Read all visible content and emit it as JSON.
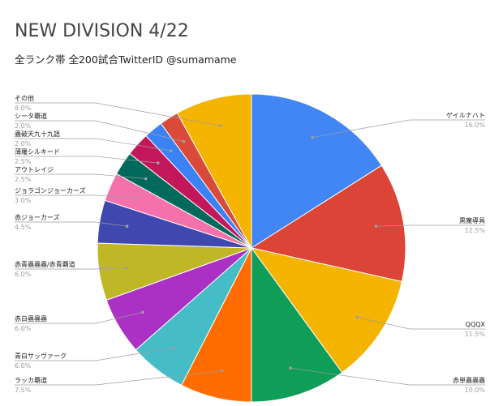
{
  "header": {
    "title": "NEW DIVISION 4/22",
    "subtitle": "全ランク帯 全200試合TwitterID @sumamame"
  },
  "chart_data": {
    "type": "pie",
    "title": "NEW DIVISION 4/22",
    "subtitle": "全ランク帯 全200試合TwitterID @sumamame",
    "slices": [
      {
        "label": "ゲイルナハト",
        "pct_label": "16.0%",
        "value": 16.0,
        "color": "#4285f4"
      },
      {
        "label": "黒魔導具",
        "pct_label": "12.5%",
        "value": 12.5,
        "color": "#db4437"
      },
      {
        "label": "QQQX",
        "pct_label": "11.5%",
        "value": 11.5,
        "color": "#f4b400"
      },
      {
        "label": "赤単蟲蟲蟲",
        "pct_label": "10.0%",
        "value": 10.0,
        "color": "#0f9d58"
      },
      {
        "label": "ラッカ覇道",
        "pct_label": "7.5%",
        "value": 7.5,
        "color": "#ff6d00"
      },
      {
        "label": "青白サッヴァーク",
        "pct_label": "6.0%",
        "value": 6.0,
        "color": "#46bdc6"
      },
      {
        "label": "赤白蟲蟲蟲",
        "pct_label": "6.0%",
        "value": 6.0,
        "color": "#ab30c4"
      },
      {
        "label": "赤青蟲蟲蟲/赤青覇道",
        "pct_label": "6.0%",
        "value": 6.0,
        "color": "#c0b727"
      },
      {
        "label": "赤ジョーカーズ",
        "pct_label": "4.5%",
        "value": 4.5,
        "color": "#3f48ae"
      },
      {
        "label": "ジョラゴンジョーカーズ",
        "pct_label": "3.0%",
        "value": 3.0,
        "color": "#f571ab"
      },
      {
        "label": "アウトレイジ",
        "pct_label": "2.5%",
        "value": 2.5,
        "color": "#00695c"
      },
      {
        "label": "薄羅シルキード",
        "pct_label": "2.5%",
        "value": 2.5,
        "color": "#c2185b"
      },
      {
        "label": "蟲破天九十九語",
        "pct_label": "2.0%",
        "value": 2.0,
        "color": "#3b82f6"
      },
      {
        "label": "シータ覇道",
        "pct_label": "2.0%",
        "value": 2.0,
        "color": "#d94a3b"
      },
      {
        "label": "その他",
        "pct_label": "8.0%",
        "value": 8.0,
        "color": "#f4b400"
      }
    ]
  }
}
